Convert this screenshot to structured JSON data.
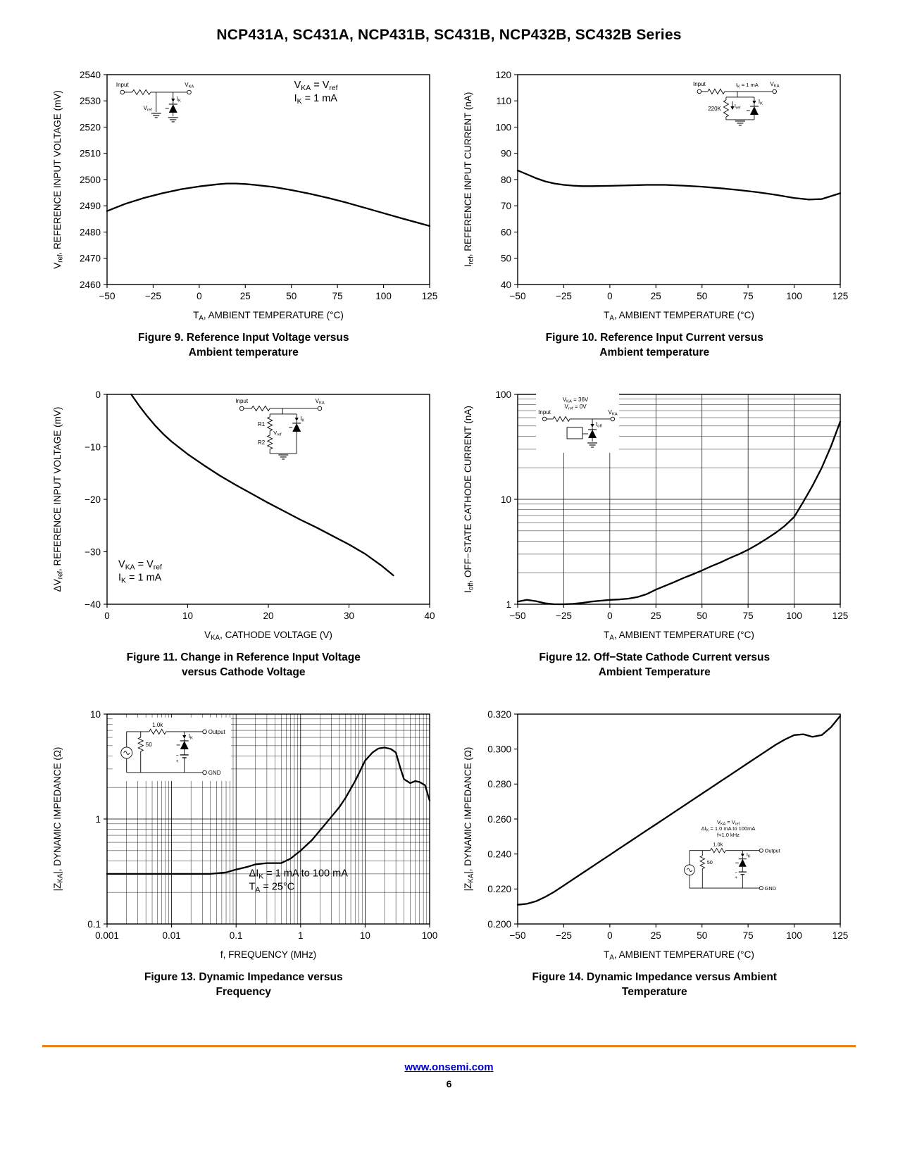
{
  "page": {
    "title": "NCP431A, SC431A, NCP431B, SC431B, NCP432B, SC432B Series",
    "footer_link": "www.onsemi.com",
    "page_number": "6",
    "rule_color": "#e8811c",
    "link_color": "#0000cc",
    "curve_color": "#000000"
  },
  "chart_data": [
    {
      "id": "figure-9",
      "type": "line",
      "caption": [
        "Figure 9. Reference Input Voltage versus",
        "Ambient temperature"
      ],
      "xlabel": "T~A~, AMBIENT TEMPERATURE (°C)",
      "ylabel": "V~ref~, REFERENCE INPUT VOLTAGE (mV)",
      "xscale": "linear",
      "yscale": "linear",
      "xlim": [
        -50,
        125
      ],
      "ylim": [
        2460,
        2540
      ],
      "xticks": [
        -50,
        -25,
        0,
        25,
        50,
        75,
        100,
        125
      ],
      "xticklabels": [
        "−50",
        "−25",
        "0",
        "25",
        "50",
        "75",
        "100",
        "125"
      ],
      "yticks": [
        2460,
        2470,
        2480,
        2490,
        2500,
        2510,
        2520,
        2530,
        2540
      ],
      "yticklabels": [
        "2460",
        "2470",
        "2480",
        "2490",
        "2500",
        "2510",
        "2520",
        "2530",
        "2540"
      ],
      "grid": null,
      "series": [
        {
          "name": "Vref vs TA",
          "x": [
            -50,
            -40,
            -30,
            -20,
            -10,
            0,
            10,
            15,
            20,
            25,
            30,
            40,
            50,
            60,
            70,
            80,
            90,
            100,
            110,
            125
          ],
          "y": [
            2488,
            2490.8,
            2493,
            2494.8,
            2496.3,
            2497.4,
            2498.2,
            2498.5,
            2498.5,
            2498.3,
            2498,
            2497.2,
            2496,
            2494.6,
            2493,
            2491.2,
            2489.2,
            2487.2,
            2485.2,
            2482.3
          ]
        }
      ],
      "annotations": [
        {
          "x": 0.58,
          "y": 0.02,
          "lines": [
            "V~KA~ = V~ref~",
            "I~K~ = 1 mA"
          ]
        }
      ],
      "inset": {
        "type": "shunt-basic",
        "pos": {
          "x": 0.03,
          "y": 0.03
        },
        "labels": {
          "input": "Input",
          "output": "V~KA~",
          "ik": "I~K~",
          "ref": "V~ref~"
        }
      }
    },
    {
      "id": "figure-10",
      "type": "line",
      "caption": [
        "Figure 10. Reference Input Current versus",
        "Ambient temperature"
      ],
      "xlabel": "T~A~, AMBIENT TEMPERATURE (°C)",
      "ylabel": "I~ref~, REFERENCE INPUT CURRENT (nA)",
      "xscale": "linear",
      "yscale": "linear",
      "xlim": [
        -50,
        125
      ],
      "ylim": [
        40,
        120
      ],
      "xticks": [
        -50,
        -25,
        0,
        25,
        50,
        75,
        100,
        125
      ],
      "xticklabels": [
        "−50",
        "−25",
        "0",
        "25",
        "50",
        "75",
        "100",
        "125"
      ],
      "yticks": [
        40,
        50,
        60,
        70,
        80,
        90,
        100,
        110,
        120
      ],
      "yticklabels": [
        "40",
        "50",
        "60",
        "70",
        "80",
        "90",
        "100",
        "110",
        "120"
      ],
      "grid": null,
      "series": [
        {
          "name": "Iref vs TA",
          "x": [
            -50,
            -45,
            -40,
            -35,
            -30,
            -25,
            -20,
            -15,
            -10,
            0,
            10,
            20,
            30,
            40,
            50,
            60,
            70,
            80,
            90,
            100,
            108,
            115,
            125
          ],
          "y": [
            83.5,
            82,
            80.5,
            79.3,
            78.5,
            78,
            77.7,
            77.5,
            77.5,
            77.6,
            77.8,
            78,
            78,
            77.7,
            77.3,
            76.7,
            76,
            75.2,
            74.2,
            73,
            72.4,
            72.6,
            74.8
          ]
        }
      ],
      "annotations": [],
      "inset": {
        "type": "shunt-220k",
        "pos": {
          "x": 0.55,
          "y": 0.02
        },
        "labels": {
          "input": "Input",
          "cond": "I~K~ = 1 mA",
          "output": "V~KA~",
          "res": "220K",
          "iref": "I~ref~",
          "ik": "I~K~"
        }
      }
    },
    {
      "id": "figure-11",
      "type": "line",
      "caption": [
        "Figure 11. Change in Reference Input Voltage",
        "versus Cathode Voltage"
      ],
      "xlabel": "V~KA~, CATHODE VOLTAGE (V)",
      "ylabel": "ΔV~ref~, REFERENCE INPUT VOLTAGE (mV)",
      "xscale": "linear",
      "yscale": "linear",
      "xlim": [
        0,
        40
      ],
      "ylim": [
        -40,
        0
      ],
      "xticks": [
        0,
        10,
        20,
        30,
        40
      ],
      "xticklabels": [
        "0",
        "10",
        "20",
        "30",
        "40"
      ],
      "yticks": [
        -40,
        -30,
        -20,
        -10,
        0
      ],
      "yticklabels": [
        "−40",
        "−30",
        "−20",
        "−10",
        "0"
      ],
      "grid": null,
      "series": [
        {
          "name": "dVref vs VKA",
          "x": [
            3,
            4,
            5,
            6,
            7,
            8,
            10,
            12,
            14,
            16,
            18,
            20,
            22,
            24,
            26,
            28,
            30,
            32,
            34,
            35.5
          ],
          "y": [
            0,
            -2.2,
            -4.2,
            -6,
            -7.6,
            -9,
            -11.4,
            -13.5,
            -15.5,
            -17.3,
            -19,
            -20.7,
            -22.3,
            -23.9,
            -25.4,
            -27,
            -28.6,
            -30.4,
            -32.6,
            -34.5
          ]
        }
      ],
      "annotations": [
        {
          "x": 0.035,
          "y": 0.78,
          "lines": [
            "V~KA~ = V~ref~",
            "I~K~ = 1 mA"
          ]
        }
      ],
      "inset": {
        "type": "shunt-r1r2",
        "pos": {
          "x": 0.4,
          "y": 0.02
        },
        "labels": {
          "input": "Input",
          "output": "V~KA~",
          "ik": "I~K~",
          "r1": "R1",
          "r2": "R2",
          "ref": "V~ref~"
        }
      }
    },
    {
      "id": "figure-12",
      "type": "line",
      "caption": [
        "Figure 12. Off−State Cathode Current versus",
        "Ambient Temperature"
      ],
      "xlabel": "T~A~, AMBIENT TEMPERATURE (°C)",
      "ylabel": "I~off~, OFF−STATE CATHODE CURRENT (nA)",
      "xscale": "linear",
      "yscale": "log",
      "xlim": [
        -50,
        125
      ],
      "ylim": [
        1,
        100
      ],
      "xticks": [
        -50,
        -25,
        0,
        25,
        50,
        75,
        100,
        125
      ],
      "xticklabels": [
        "−50",
        "−25",
        "0",
        "25",
        "50",
        "75",
        "100",
        "125"
      ],
      "yticks": [
        1,
        10,
        100
      ],
      "yticklabels": [
        "1",
        "10",
        "100"
      ],
      "grid": {
        "x": "major",
        "y": "log"
      },
      "series": [
        {
          "name": "Ioff vs TA",
          "x": [
            -50,
            -45,
            -40,
            -35,
            -30,
            -25,
            -20,
            -15,
            -10,
            -5,
            0,
            5,
            10,
            15,
            20,
            25,
            30,
            35,
            40,
            45,
            50,
            55,
            60,
            65,
            70,
            75,
            80,
            85,
            90,
            95,
            100,
            105,
            110,
            115,
            120,
            125
          ],
          "y": [
            1.06,
            1.1,
            1.07,
            1.02,
            1.0,
            1.0,
            1.01,
            1.03,
            1.06,
            1.08,
            1.1,
            1.11,
            1.13,
            1.17,
            1.25,
            1.38,
            1.5,
            1.63,
            1.78,
            1.93,
            2.1,
            2.3,
            2.5,
            2.75,
            3.0,
            3.3,
            3.7,
            4.2,
            4.8,
            5.6,
            6.8,
            9.5,
            13.5,
            20,
            32,
            55
          ]
        }
      ],
      "annotations": [],
      "inset": {
        "type": "shunt-off",
        "pos": {
          "x": 0.07,
          "y": 0.01
        },
        "bg": [
          118,
          84
        ],
        "labels": {
          "cond1": "V~KA~ = 36V",
          "cond2": "V~ref~ = 0V",
          "input": "Input",
          "output": "V~KA~",
          "ioff": "I~off~"
        }
      }
    },
    {
      "id": "figure-13",
      "type": "line",
      "caption": [
        "Figure 13. Dynamic Impedance versus",
        "Frequency"
      ],
      "xlabel": "f, FREQUENCY (MHz)",
      "ylabel": "|Z~KA~|, DYNAMIC IMPEDANCE (Ω)",
      "xscale": "log",
      "yscale": "log",
      "xlim": [
        0.001,
        100
      ],
      "ylim": [
        0.1,
        10
      ],
      "xticks": [
        0.001,
        0.01,
        0.1,
        1,
        10,
        100
      ],
      "xticklabels": [
        "0.001",
        "0.01",
        "0.1",
        "1",
        "10",
        "100"
      ],
      "yticks": [
        0.1,
        1,
        10
      ],
      "yticklabels": [
        "0.1",
        "1",
        "10"
      ],
      "grid": {
        "x": "log",
        "y": "log"
      },
      "series": [
        {
          "name": "ZKA vs f",
          "x": [
            0.001,
            0.002,
            0.004,
            0.007,
            0.01,
            0.02,
            0.04,
            0.07,
            0.1,
            0.15,
            0.2,
            0.3,
            0.4,
            0.5,
            0.7,
            1,
            1.5,
            2,
            3,
            4,
            5,
            7,
            10,
            13,
            16,
            20,
            25,
            30,
            35,
            40,
            50,
            60,
            70,
            85,
            100
          ],
          "y": [
            0.3,
            0.3,
            0.3,
            0.3,
            0.3,
            0.3,
            0.3,
            0.31,
            0.33,
            0.35,
            0.37,
            0.38,
            0.38,
            0.38,
            0.42,
            0.5,
            0.63,
            0.78,
            1.05,
            1.3,
            1.6,
            2.3,
            3.6,
            4.3,
            4.7,
            4.8,
            4.65,
            4.3,
            3.1,
            2.4,
            2.2,
            2.3,
            2.25,
            2.1,
            1.5
          ]
        }
      ],
      "annotations": [
        {
          "x": 0.44,
          "y": 0.73,
          "lines": [
            "ΔI~K~ = 1 mA to 100 mA",
            "T~A~ = 25°C"
          ]
        }
      ],
      "inset": {
        "type": "dyn",
        "pos": {
          "x": 0.03,
          "y": 0.03
        },
        "bg": [
          168,
          90
        ],
        "labels": {
          "r1": "1.0k",
          "r2": "50",
          "output": "Output",
          "ik": "I~K~",
          "gnd": "GND"
        }
      }
    },
    {
      "id": "figure-14",
      "type": "line",
      "caption": [
        "Figure 14. Dynamic Impedance versus Ambient",
        "Temperature"
      ],
      "xlabel": "T~A~, AMBIENT TEMPERATURE (°C)",
      "ylabel": "|Z~KA~|, DYNAMIC IMPEDANCE (Ω)",
      "xscale": "linear",
      "yscale": "linear",
      "xlim": [
        -50,
        125
      ],
      "ylim": [
        0.2,
        0.32
      ],
      "xticks": [
        -50,
        -25,
        0,
        25,
        50,
        75,
        100,
        125
      ],
      "xticklabels": [
        "−50",
        "−25",
        "0",
        "25",
        "50",
        "75",
        "100",
        "125"
      ],
      "yticks": [
        0.2,
        0.22,
        0.24,
        0.26,
        0.28,
        0.3,
        0.32
      ],
      "yticklabels": [
        "0.200",
        "0.220",
        "0.240",
        "0.260",
        "0.280",
        "0.300",
        "0.320"
      ],
      "grid": null,
      "series": [
        {
          "name": "ZKA vs TA",
          "x": [
            -50,
            -45,
            -40,
            -35,
            -30,
            -25,
            -20,
            -15,
            -10,
            -5,
            0,
            5,
            10,
            15,
            20,
            25,
            30,
            35,
            40,
            45,
            50,
            55,
            60,
            65,
            70,
            75,
            80,
            85,
            90,
            95,
            100,
            105,
            110,
            115,
            120,
            125
          ],
          "y": [
            0.211,
            0.2115,
            0.213,
            0.2155,
            0.2185,
            0.222,
            0.2255,
            0.229,
            0.2325,
            0.236,
            0.2395,
            0.243,
            0.2465,
            0.25,
            0.2535,
            0.257,
            0.2605,
            0.264,
            0.2675,
            0.271,
            0.2745,
            0.278,
            0.2815,
            0.285,
            0.2885,
            0.292,
            0.2955,
            0.299,
            0.3025,
            0.3055,
            0.308,
            0.3085,
            0.307,
            0.308,
            0.3125,
            0.319
          ]
        }
      ],
      "annotations": [],
      "inset": {
        "type": "dyn-cond",
        "pos": {
          "x": 0.5,
          "y": 0.5
        },
        "bg": [
          160,
          116
        ],
        "labels": {
          "cond1": "V~KA~ = V~ref~",
          "cond2": "ΔI~K~ = 1.0 mA to 100mA",
          "cond3": "f<1.0 kHz",
          "r1": "1.0k",
          "r2": "50",
          "output": "Output",
          "ik": "I~K~",
          "gnd": "GND"
        }
      }
    }
  ]
}
